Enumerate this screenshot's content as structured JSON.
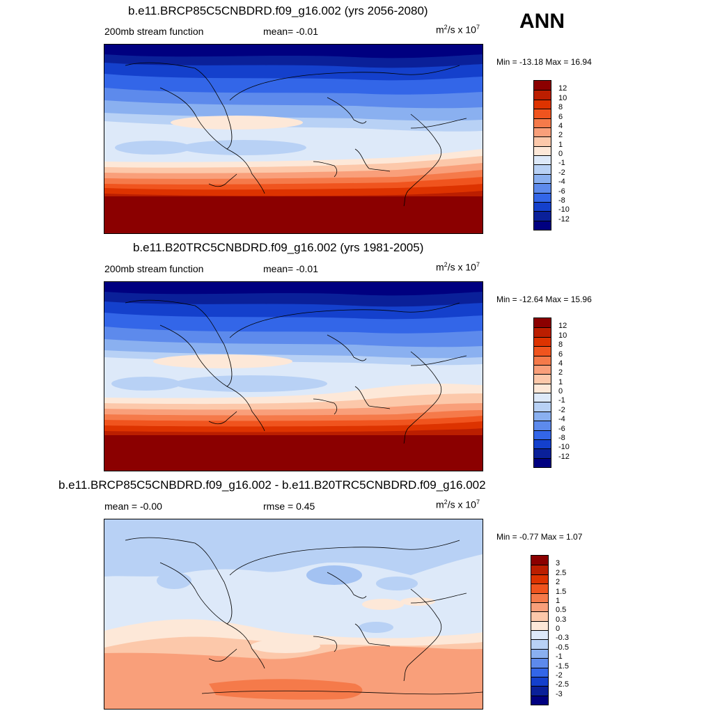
{
  "season": "ANN",
  "panels": [
    {
      "title": "b.e11.BRCP85C5CNBDRD.f09_g16.002 (yrs 2056-2080)",
      "left_label": "200mb stream function",
      "mid_label": "mean=  -0.01",
      "units_base": "m",
      "units_mid": "/s x 10",
      "units_sup1": "2",
      "units_sup2": "7",
      "minmax": "Min = -13.18 Max =  16.94",
      "levels": [
        "12",
        "10",
        "8",
        "6",
        "4",
        "2",
        "1",
        "0",
        "-1",
        "-2",
        "-4",
        "-6",
        "-8",
        "-10",
        "-12"
      ],
      "colors": [
        "#8b0000",
        "#bb1e00",
        "#dd3300",
        "#f0541e",
        "#f57a4a",
        "#f99f7a",
        "#fcc8aa",
        "#fde8d8",
        "#dde9f9",
        "#b8d1f5",
        "#8ab0f0",
        "#5d8aec",
        "#3366e8",
        "#1440cc",
        "#0a2099",
        "#000080"
      ]
    },
    {
      "title": "b.e11.B20TRC5CNBDRD.f09_g16.002 (yrs 1981-2005)",
      "left_label": "200mb stream function",
      "mid_label": "mean=  -0.01",
      "units_base": "m",
      "units_mid": "/s x 10",
      "units_sup1": "2",
      "units_sup2": "7",
      "minmax": "Min = -12.64 Max =  15.96",
      "levels": [
        "12",
        "10",
        "8",
        "6",
        "4",
        "2",
        "1",
        "0",
        "-1",
        "-2",
        "-4",
        "-6",
        "-8",
        "-10",
        "-12"
      ],
      "colors": [
        "#8b0000",
        "#bb1e00",
        "#dd3300",
        "#f0541e",
        "#f57a4a",
        "#f99f7a",
        "#fcc8aa",
        "#fde8d8",
        "#dde9f9",
        "#b8d1f5",
        "#8ab0f0",
        "#5d8aec",
        "#3366e8",
        "#1440cc",
        "#0a2099",
        "#000080"
      ]
    },
    {
      "title": "b.e11.BRCP85C5CNBDRD.f09_g16.002 - b.e11.B20TRC5CNBDRD.f09_g16.002",
      "left_label": "mean =  -0.00",
      "mid_label": "rmse =   0.45",
      "units_base": "m",
      "units_mid": "/s x 10",
      "units_sup1": "2",
      "units_sup2": "7",
      "minmax": "Min =  -0.77 Max =   1.07",
      "levels": [
        "3",
        "2.5",
        "2",
        "1.5",
        "1",
        "0.5",
        "0.3",
        "0",
        "-0.3",
        "-0.5",
        "-1",
        "-1.5",
        "-2",
        "-2.5",
        "-3"
      ],
      "colors": [
        "#8b0000",
        "#bb1e00",
        "#dd3300",
        "#f0541e",
        "#f57a4a",
        "#f99f7a",
        "#fcc8aa",
        "#fde8d8",
        "#dde9f9",
        "#b8d1f5",
        "#8ab0f0",
        "#5d8aec",
        "#3366e8",
        "#1440cc",
        "#0a2099",
        "#000080"
      ]
    }
  ]
}
